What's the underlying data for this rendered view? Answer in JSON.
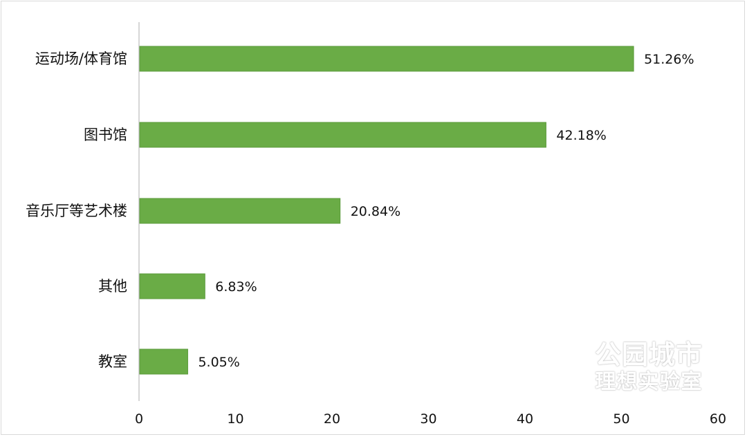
{
  "chart_data": {
    "type": "bar",
    "orientation": "horizontal",
    "categories": [
      "运动场/体育馆",
      "图书馆",
      "音乐厅等艺术楼",
      "其他",
      "教室"
    ],
    "values": [
      51.26,
      42.18,
      20.84,
      6.83,
      5.05
    ],
    "value_labels": [
      "51.26%",
      "42.18%",
      "20.84%",
      "6.83%",
      "5.05%"
    ],
    "x_ticks": [
      "0",
      "10",
      "20",
      "30",
      "40",
      "50",
      "60"
    ],
    "xlim": [
      0,
      60
    ],
    "bar_color": "#6aac46",
    "bar_border_color": "#5a9a3a",
    "title": "",
    "xlabel": "",
    "ylabel": "",
    "grid": false,
    "legend": "none"
  },
  "watermark": {
    "line1": "公园城市",
    "line2": "理想实验室"
  }
}
